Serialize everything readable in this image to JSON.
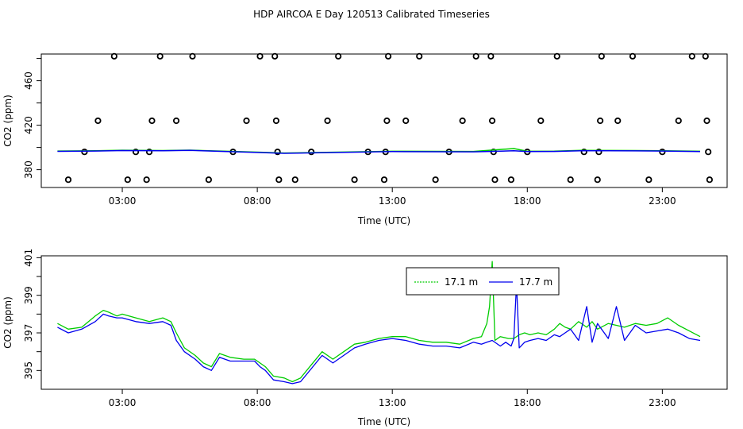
{
  "title": "HDP AIRCOA E  Day 120513  Calibrated Timeseries",
  "chart_data": [
    {
      "type": "scatter+line",
      "xlabel": "Time (UTC)",
      "ylabel": "CO2 (ppm)",
      "xlim": [
        0,
        25.4
      ],
      "ylim": [
        364,
        484
      ],
      "x_ticks": [
        {
          "value": 3,
          "label": "03:00"
        },
        {
          "value": 8,
          "label": "08:00"
        },
        {
          "value": 13,
          "label": "13:00"
        },
        {
          "value": 18,
          "label": "18:00"
        },
        {
          "value": 23,
          "label": "23:00"
        }
      ],
      "y_ticks": [
        {
          "value": 380,
          "label": "380"
        },
        {
          "value": 420,
          "label": "420"
        },
        {
          "value": 460,
          "label": "460"
        }
      ],
      "y_ticks_minor": [
        400,
        440,
        480
      ],
      "points": [
        {
          "x": 1.0,
          "y": 371
        },
        {
          "x": 1.6,
          "y": 396
        },
        {
          "x": 2.1,
          "y": 424
        },
        {
          "x": 2.7,
          "y": 482
        },
        {
          "x": 3.2,
          "y": 371
        },
        {
          "x": 3.5,
          "y": 396
        },
        {
          "x": 3.9,
          "y": 371
        },
        {
          "x": 4.0,
          "y": 396
        },
        {
          "x": 4.1,
          "y": 424
        },
        {
          "x": 4.4,
          "y": 482
        },
        {
          "x": 5.0,
          "y": 424
        },
        {
          "x": 5.6,
          "y": 482
        },
        {
          "x": 6.2,
          "y": 371
        },
        {
          "x": 7.1,
          "y": 396
        },
        {
          "x": 7.6,
          "y": 424
        },
        {
          "x": 8.1,
          "y": 482
        },
        {
          "x": 8.65,
          "y": 482
        },
        {
          "x": 8.7,
          "y": 424
        },
        {
          "x": 8.75,
          "y": 396
        },
        {
          "x": 8.8,
          "y": 371
        },
        {
          "x": 9.4,
          "y": 371
        },
        {
          "x": 10.0,
          "y": 396
        },
        {
          "x": 10.6,
          "y": 424
        },
        {
          "x": 11.0,
          "y": 482
        },
        {
          "x": 11.6,
          "y": 371
        },
        {
          "x": 12.1,
          "y": 396
        },
        {
          "x": 12.7,
          "y": 371
        },
        {
          "x": 12.75,
          "y": 396
        },
        {
          "x": 12.8,
          "y": 424
        },
        {
          "x": 12.85,
          "y": 482
        },
        {
          "x": 13.5,
          "y": 424
        },
        {
          "x": 14.0,
          "y": 482
        },
        {
          "x": 14.6,
          "y": 371
        },
        {
          "x": 15.1,
          "y": 396
        },
        {
          "x": 15.6,
          "y": 424
        },
        {
          "x": 16.1,
          "y": 482
        },
        {
          "x": 16.65,
          "y": 482
        },
        {
          "x": 16.7,
          "y": 424
        },
        {
          "x": 16.75,
          "y": 396
        },
        {
          "x": 16.8,
          "y": 371
        },
        {
          "x": 17.4,
          "y": 371
        },
        {
          "x": 18.0,
          "y": 396
        },
        {
          "x": 18.5,
          "y": 424
        },
        {
          "x": 19.1,
          "y": 482
        },
        {
          "x": 19.6,
          "y": 371
        },
        {
          "x": 20.1,
          "y": 396
        },
        {
          "x": 20.6,
          "y": 371
        },
        {
          "x": 20.65,
          "y": 396
        },
        {
          "x": 20.7,
          "y": 424
        },
        {
          "x": 20.75,
          "y": 482
        },
        {
          "x": 21.35,
          "y": 424
        },
        {
          "x": 21.9,
          "y": 482
        },
        {
          "x": 22.5,
          "y": 371
        },
        {
          "x": 23.0,
          "y": 396
        },
        {
          "x": 23.6,
          "y": 424
        },
        {
          "x": 24.1,
          "y": 482
        },
        {
          "x": 24.6,
          "y": 482
        },
        {
          "x": 24.65,
          "y": 424
        },
        {
          "x": 24.7,
          "y": 396
        },
        {
          "x": 24.75,
          "y": 371
        }
      ],
      "series": [
        {
          "name": "17.1 m",
          "color": "#00cc00",
          "x": [
            0.6,
            2.0,
            3.0,
            4.5,
            5.5,
            7.0,
            8.0,
            9.0,
            11.0,
            13.0,
            16.0,
            17.5,
            18.0,
            19.0,
            20.0,
            21.0,
            22.0,
            23.0,
            24.4
          ],
          "y": [
            396.8,
            397.0,
            397.5,
            397.2,
            397.6,
            396.5,
            395.8,
            395.0,
            395.8,
            396.6,
            396.4,
            399.0,
            396.6,
            396.7,
            397.4,
            397.3,
            397.2,
            397.1,
            396.6
          ]
        },
        {
          "name": "17.7 m",
          "color": "#0000ee",
          "x": [
            0.6,
            2.0,
            3.0,
            4.5,
            5.5,
            7.0,
            8.0,
            9.0,
            11.0,
            13.0,
            16.0,
            17.5,
            18.0,
            19.0,
            20.0,
            21.0,
            22.0,
            23.0,
            24.4
          ],
          "y": [
            396.5,
            396.8,
            397.2,
            397.0,
            397.4,
            396.2,
            395.5,
            394.7,
            395.5,
            396.3,
            396.1,
            397.0,
            396.3,
            396.4,
            397.0,
            397.0,
            396.9,
            396.8,
            396.3
          ]
        }
      ]
    },
    {
      "type": "line",
      "xlabel": "Time (UTC)",
      "ylabel": "CO2 (ppm)",
      "xlim": [
        0,
        25.4
      ],
      "ylim": [
        394.0,
        401.1
      ],
      "x_ticks": [
        {
          "value": 3,
          "label": "03:00"
        },
        {
          "value": 8,
          "label": "08:00"
        },
        {
          "value": 13,
          "label": "13:00"
        },
        {
          "value": 18,
          "label": "18:00"
        },
        {
          "value": 23,
          "label": "23:00"
        }
      ],
      "y_ticks": [
        {
          "value": 395,
          "label": "395"
        },
        {
          "value": 397,
          "label": "397"
        },
        {
          "value": 399,
          "label": "399"
        },
        {
          "value": 401,
          "label": "401"
        }
      ],
      "y_ticks_minor": [
        396,
        398,
        400
      ],
      "legend": {
        "placement": "top-right",
        "entries": [
          "17.1 m",
          "17.7 m"
        ]
      },
      "series": [
        {
          "name": "17.1 m",
          "color": "#00cc00",
          "x": [
            0.6,
            1.0,
            1.5,
            2.0,
            2.3,
            2.5,
            2.8,
            3.0,
            3.5,
            4.0,
            4.5,
            4.8,
            5.0,
            5.3,
            5.7,
            6.0,
            6.3,
            6.6,
            7.0,
            7.5,
            7.9,
            8.1,
            8.3,
            8.6,
            9.0,
            9.3,
            9.6,
            10.0,
            10.4,
            10.8,
            11.2,
            11.6,
            12.0,
            12.5,
            13.0,
            13.5,
            14.0,
            14.5,
            15.0,
            15.5,
            16.0,
            16.3,
            16.5,
            16.6,
            16.7,
            16.8,
            17.0,
            17.3,
            17.5,
            17.7,
            17.9,
            18.1,
            18.4,
            18.7,
            19.0,
            19.2,
            19.4,
            19.6,
            19.9,
            20.2,
            20.4,
            20.6,
            21.0,
            21.3,
            21.6,
            22.0,
            22.4,
            22.8,
            23.2,
            23.6,
            24.0,
            24.4
          ],
          "y": [
            397.5,
            397.2,
            397.3,
            397.9,
            398.2,
            398.1,
            397.9,
            398.0,
            397.8,
            397.6,
            397.8,
            397.6,
            397.0,
            396.2,
            395.8,
            395.4,
            395.2,
            395.9,
            395.7,
            395.6,
            395.6,
            395.4,
            395.2,
            394.7,
            394.6,
            394.4,
            394.6,
            395.3,
            396.0,
            395.6,
            396.0,
            396.4,
            396.5,
            396.7,
            396.8,
            396.8,
            396.6,
            396.5,
            396.5,
            396.4,
            396.7,
            396.8,
            397.5,
            398.4,
            400.8,
            396.6,
            396.8,
            396.7,
            396.7,
            396.9,
            397.0,
            396.9,
            397.0,
            396.9,
            397.2,
            397.5,
            397.3,
            397.2,
            397.6,
            397.3,
            397.6,
            397.2,
            397.5,
            397.4,
            397.3,
            397.5,
            397.4,
            397.5,
            397.8,
            397.4,
            397.1,
            396.8
          ]
        },
        {
          "name": "17.7 m",
          "color": "#0000ee",
          "x": [
            0.6,
            1.0,
            1.5,
            2.0,
            2.3,
            2.5,
            2.8,
            3.0,
            3.5,
            4.0,
            4.5,
            4.8,
            5.0,
            5.3,
            5.7,
            6.0,
            6.3,
            6.6,
            7.0,
            7.5,
            7.9,
            8.1,
            8.3,
            8.6,
            9.0,
            9.3,
            9.6,
            10.0,
            10.4,
            10.8,
            11.2,
            11.6,
            12.0,
            12.5,
            13.0,
            13.5,
            14.0,
            14.5,
            15.0,
            15.5,
            16.0,
            16.3,
            16.5,
            16.7,
            17.0,
            17.2,
            17.4,
            17.5,
            17.6,
            17.7,
            17.9,
            18.1,
            18.4,
            18.7,
            19.0,
            19.2,
            19.4,
            19.6,
            19.9,
            20.2,
            20.4,
            20.6,
            21.0,
            21.3,
            21.6,
            22.0,
            22.4,
            22.8,
            23.2,
            23.6,
            24.0,
            24.4
          ],
          "y": [
            397.3,
            397.0,
            397.2,
            397.6,
            398.0,
            397.9,
            397.8,
            397.8,
            397.6,
            397.5,
            397.6,
            397.4,
            396.6,
            396.0,
            395.6,
            395.2,
            395.0,
            395.7,
            395.5,
            395.5,
            395.5,
            395.2,
            395.0,
            394.5,
            394.4,
            394.3,
            394.4,
            395.1,
            395.8,
            395.4,
            395.8,
            396.2,
            396.4,
            396.6,
            396.7,
            396.6,
            396.4,
            396.3,
            396.3,
            396.2,
            396.5,
            396.4,
            396.5,
            396.6,
            396.3,
            396.5,
            396.3,
            396.7,
            399.6,
            396.2,
            396.5,
            396.6,
            396.7,
            396.6,
            396.9,
            396.8,
            397.0,
            397.2,
            396.6,
            398.4,
            396.5,
            397.5,
            396.7,
            398.4,
            396.6,
            397.4,
            397.0,
            397.1,
            397.2,
            397.0,
            396.7,
            396.6
          ]
        }
      ]
    }
  ]
}
